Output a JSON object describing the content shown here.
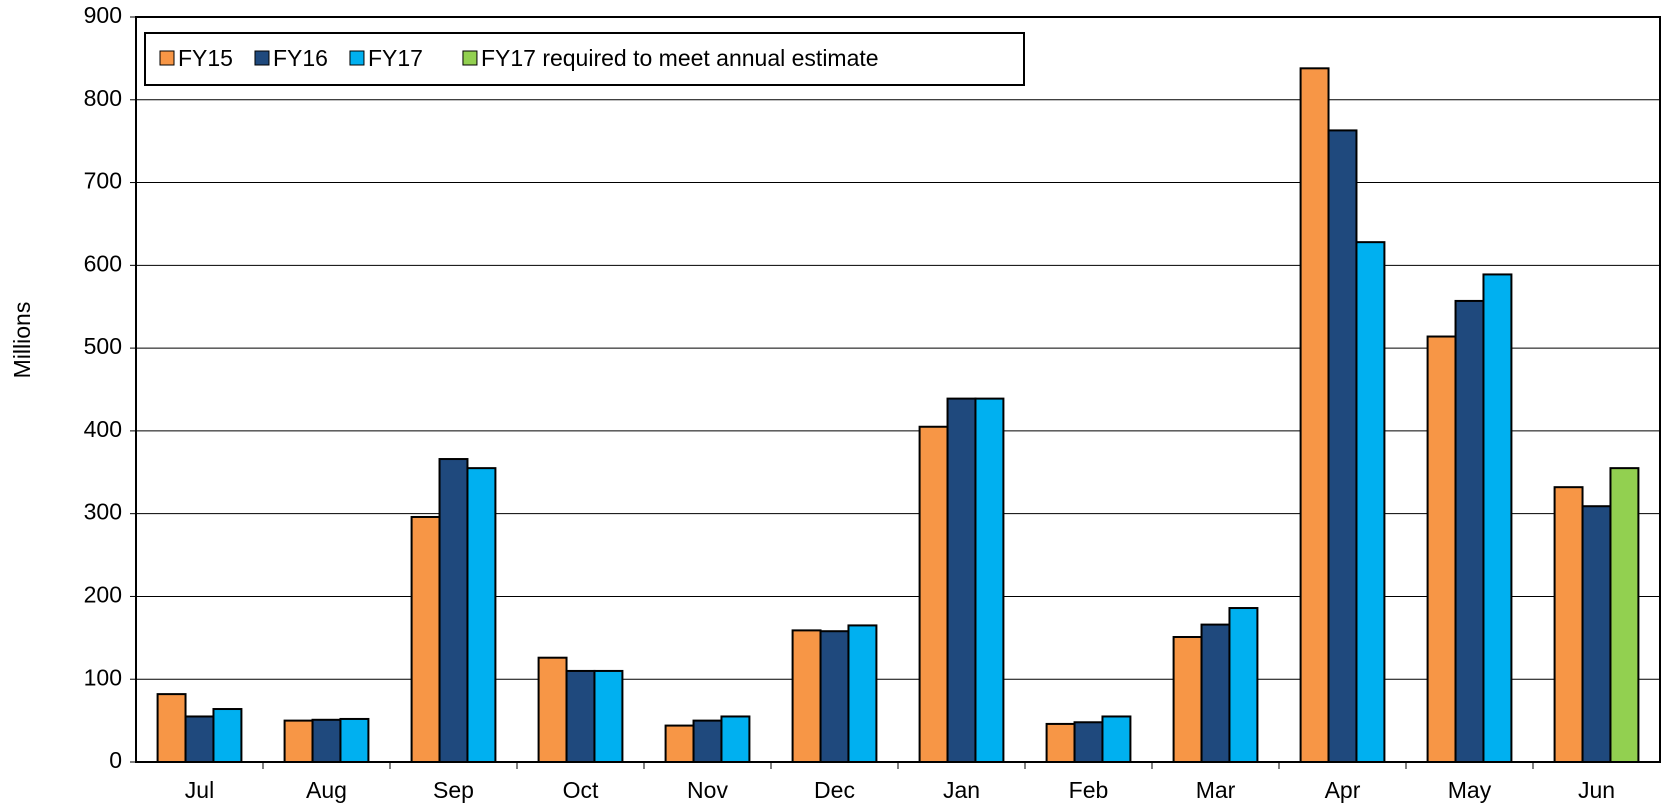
{
  "chart_data": {
    "type": "bar",
    "y_label": "Millions",
    "categories": [
      "Jul",
      "Aug",
      "Sep",
      "Oct",
      "Nov",
      "Dec",
      "Jan",
      "Feb",
      "Mar",
      "Apr",
      "May",
      "Jun"
    ],
    "series": [
      {
        "name": "FY15",
        "color": "#f79646",
        "values": [
          82,
          50,
          296,
          126,
          44,
          159,
          405,
          46,
          151,
          838,
          514,
          332
        ]
      },
      {
        "name": "FY16",
        "color": "#1f497d",
        "values": [
          55,
          51,
          366,
          110,
          50,
          158,
          439,
          48,
          166,
          763,
          557,
          309
        ]
      },
      {
        "name": "FY17",
        "color": "#00b0f0",
        "values": [
          64,
          52,
          355,
          110,
          55,
          165,
          439,
          55,
          186,
          628,
          589,
          null
        ]
      },
      {
        "name": "FY17 required to meet annual estimate",
        "color": "#92d050",
        "values": [
          null,
          null,
          null,
          null,
          null,
          null,
          null,
          null,
          null,
          null,
          null,
          355
        ]
      }
    ],
    "ylim": [
      0,
      900
    ],
    "yticks": [
      0,
      100,
      200,
      300,
      400,
      500,
      600,
      700,
      800,
      900
    ],
    "grid": true
  }
}
